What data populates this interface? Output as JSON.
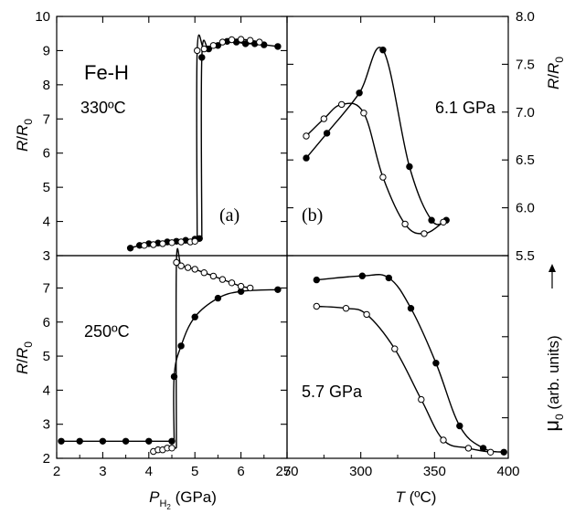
{
  "figure": {
    "panel_a_material": "Fe-H",
    "panel_a_temp": "330ºC",
    "panel_a_letter": "(a)",
    "panel_b_letter": "(b)",
    "panel_c_temp": "250ºC",
    "panel_b_pressure": "6.1 GPa",
    "panel_d_pressure": "5.7 GPa",
    "y_label_left_a": "R/R0",
    "y_label_left_c": "R/R0",
    "y_label_right_b": "R/R0",
    "y_label_right_d": "μ0 (arb. units)",
    "x_label_left": "P_H2 (GPa)",
    "x_label_right": "T (ºC)"
  },
  "chart_data": [
    {
      "panel": "a",
      "type": "line",
      "xlabel": "",
      "ylabel": "R/R0",
      "xlim": [
        2,
        7
      ],
      "ylim": [
        3,
        10
      ],
      "yticks": [
        3,
        4,
        5,
        6,
        7,
        8,
        9,
        10
      ],
      "annotations": [
        "Fe-H",
        "330ºC",
        "(a)"
      ],
      "series": [
        {
          "marker": "filled",
          "x": [
            3.6,
            3.8,
            4.0,
            4.2,
            4.4,
            4.6,
            4.8,
            5.0,
            5.1,
            5.15,
            5.3,
            5.5,
            5.7,
            5.9,
            6.1,
            6.3,
            6.5,
            6.8
          ],
          "y": [
            3.22,
            3.3,
            3.35,
            3.37,
            3.4,
            3.42,
            3.45,
            3.48,
            3.5,
            8.8,
            9.05,
            9.15,
            9.27,
            9.25,
            9.2,
            9.2,
            9.17,
            9.12
          ]
        },
        {
          "marker": "open",
          "x": [
            3.9,
            4.1,
            4.3,
            4.5,
            4.7,
            4.9,
            5.0,
            5.05,
            5.2,
            5.4,
            5.6,
            5.8,
            6.0,
            6.2,
            6.4
          ],
          "y": [
            3.3,
            3.32,
            3.35,
            3.38,
            3.4,
            3.4,
            3.42,
            9.0,
            9.05,
            9.15,
            9.25,
            9.32,
            9.33,
            9.3,
            9.25
          ]
        }
      ]
    },
    {
      "panel": "b",
      "type": "line",
      "xlabel": "",
      "ylabel": "R/R0",
      "xlim": [
        250,
        400
      ],
      "ylim": [
        5.5,
        8.0
      ],
      "yticks": [
        5.5,
        6.0,
        6.5,
        7.0,
        7.5,
        8.0
      ],
      "annotations": [
        "6.1 GPa",
        "(b)"
      ],
      "series": [
        {
          "marker": "filled",
          "x": [
            263,
            277,
            299,
            315,
            333,
            348,
            358
          ],
          "y": [
            6.52,
            6.78,
            7.2,
            7.65,
            6.43,
            5.87,
            5.87
          ]
        },
        {
          "marker": "open",
          "x": [
            263,
            275,
            287,
            302,
            315,
            330,
            343,
            356
          ],
          "y": [
            6.75,
            6.93,
            7.08,
            6.99,
            6.32,
            5.83,
            5.73,
            5.85
          ]
        }
      ]
    },
    {
      "panel": "c",
      "type": "line",
      "xlabel": "P_H2 (GPa)",
      "ylabel": "R/R0",
      "xlim": [
        2,
        7
      ],
      "ylim": [
        2,
        8
      ],
      "xticks": [
        2,
        3,
        4,
        5,
        6,
        7
      ],
      "yticks": [
        2,
        3,
        4,
        5,
        6,
        7
      ],
      "ytick_labels": [
        "2",
        "3",
        "4",
        "5",
        "6",
        "7"
      ],
      "annotations": [
        "250ºC"
      ],
      "series": [
        {
          "marker": "filled",
          "x": [
            2.1,
            2.5,
            3.0,
            3.5,
            4.0,
            4.5,
            4.55,
            4.7,
            5.0,
            5.5,
            6.0,
            6.8
          ],
          "y": [
            2.5,
            2.5,
            2.5,
            2.5,
            2.5,
            2.5,
            4.4,
            5.3,
            6.15,
            6.7,
            6.9,
            6.95
          ]
        },
        {
          "marker": "open",
          "x": [
            4.1,
            4.2,
            4.3,
            4.4,
            4.5,
            4.6,
            4.7,
            4.85,
            5.0,
            5.2,
            5.4,
            5.6,
            5.8,
            6.0,
            6.2
          ],
          "y": [
            2.2,
            2.25,
            2.25,
            2.3,
            2.3,
            7.75,
            7.65,
            7.6,
            7.55,
            7.45,
            7.35,
            7.25,
            7.15,
            7.05,
            7.0
          ]
        }
      ]
    },
    {
      "panel": "d",
      "type": "line",
      "xlabel": "T (ºC)",
      "ylabel": "μ0 (arb. units)",
      "xlim": [
        250,
        400
      ],
      "ylim": [
        0,
        1
      ],
      "xticks": [
        250,
        300,
        350,
        400
      ],
      "annotations": [
        "5.7 GPa"
      ],
      "series": [
        {
          "marker": "filled",
          "x": [
            270,
            301,
            319,
            334,
            351,
            367,
            383,
            397
          ],
          "y": [
            0.88,
            0.9,
            0.89,
            0.74,
            0.47,
            0.16,
            0.05,
            0.03
          ]
        },
        {
          "marker": "open",
          "x": [
            270,
            290,
            304,
            323,
            341,
            356,
            373,
            388
          ],
          "y": [
            0.75,
            0.74,
            0.71,
            0.54,
            0.29,
            0.09,
            0.05,
            0.03
          ]
        }
      ]
    }
  ]
}
